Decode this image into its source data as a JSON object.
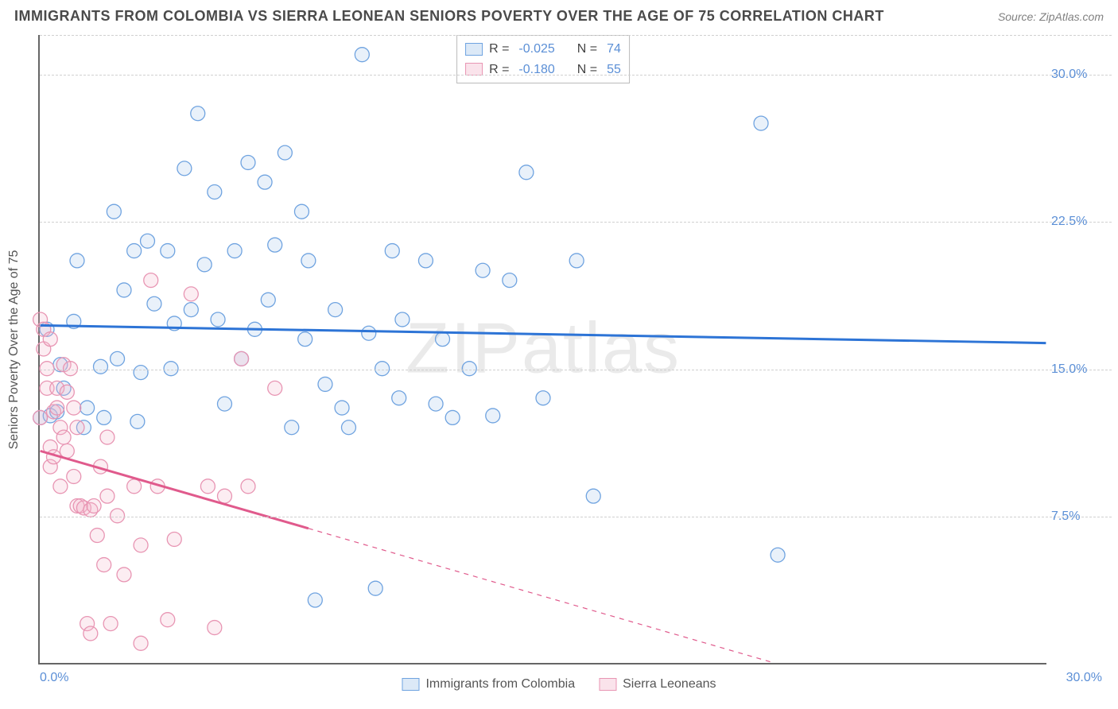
{
  "title": "IMMIGRANTS FROM COLOMBIA VS SIERRA LEONEAN SENIORS POVERTY OVER THE AGE OF 75 CORRELATION CHART",
  "source": "Source: ZipAtlas.com",
  "watermark": "ZIPatlas",
  "chart": {
    "type": "scatter",
    "x_domain": [
      0,
      30
    ],
    "y_domain": [
      0,
      32
    ],
    "y_ticks": [
      7.5,
      15.0,
      22.5,
      30.0
    ],
    "y_tick_labels": [
      "7.5%",
      "15.0%",
      "22.5%",
      "30.0%"
    ],
    "x_ticks": [
      0,
      30
    ],
    "x_tick_labels": [
      "0.0%",
      "30.0%"
    ],
    "y_axis_title": "Seniors Poverty Over the Age of 75",
    "background_color": "#ffffff",
    "grid_color": "#d0d0d0",
    "axis_color": "#666666",
    "tick_label_color": "#5b8fd6",
    "marker_radius": 9,
    "marker_stroke_width": 1.3,
    "marker_fill_opacity": 0.25,
    "line_width": 3,
    "series": [
      {
        "name": "Immigrants from Colombia",
        "color_stroke": "#6fa3e0",
        "color_fill": "#a8c7ec",
        "line_color": "#2d74d6",
        "R": "-0.025",
        "N": "74",
        "trend": {
          "x1": 0,
          "y1": 17.2,
          "x2": 30,
          "y2": 16.3,
          "dash_from_x": null
        },
        "points": [
          [
            0.0,
            12.5
          ],
          [
            0.2,
            17.0
          ],
          [
            0.3,
            12.6
          ],
          [
            0.5,
            12.8
          ],
          [
            0.6,
            15.2
          ],
          [
            0.7,
            14.0
          ],
          [
            1.0,
            17.4
          ],
          [
            1.1,
            20.5
          ],
          [
            1.3,
            12.0
          ],
          [
            1.4,
            13.0
          ],
          [
            1.8,
            15.1
          ],
          [
            1.9,
            12.5
          ],
          [
            2.2,
            23.0
          ],
          [
            2.3,
            15.5
          ],
          [
            2.5,
            19.0
          ],
          [
            2.8,
            21.0
          ],
          [
            2.9,
            12.3
          ],
          [
            3.0,
            14.8
          ],
          [
            3.2,
            21.5
          ],
          [
            3.4,
            18.3
          ],
          [
            3.8,
            21.0
          ],
          [
            3.9,
            15.0
          ],
          [
            4.0,
            17.3
          ],
          [
            4.3,
            25.2
          ],
          [
            4.5,
            18.0
          ],
          [
            4.7,
            28.0
          ],
          [
            4.9,
            20.3
          ],
          [
            5.2,
            24.0
          ],
          [
            5.3,
            17.5
          ],
          [
            5.5,
            13.2
          ],
          [
            5.8,
            21.0
          ],
          [
            6.0,
            15.5
          ],
          [
            6.2,
            25.5
          ],
          [
            6.4,
            17.0
          ],
          [
            6.7,
            24.5
          ],
          [
            6.8,
            18.5
          ],
          [
            7.0,
            21.3
          ],
          [
            7.3,
            26.0
          ],
          [
            7.5,
            12.0
          ],
          [
            7.8,
            23.0
          ],
          [
            7.9,
            16.5
          ],
          [
            8.0,
            20.5
          ],
          [
            8.2,
            3.2
          ],
          [
            8.5,
            14.2
          ],
          [
            8.8,
            18.0
          ],
          [
            9.0,
            13.0
          ],
          [
            9.2,
            12.0
          ],
          [
            9.6,
            31.0
          ],
          [
            9.8,
            16.8
          ],
          [
            10.0,
            3.8
          ],
          [
            10.2,
            15.0
          ],
          [
            10.5,
            21.0
          ],
          [
            10.7,
            13.5
          ],
          [
            10.8,
            17.5
          ],
          [
            11.5,
            20.5
          ],
          [
            11.8,
            13.2
          ],
          [
            12.0,
            16.5
          ],
          [
            12.3,
            12.5
          ],
          [
            12.8,
            15.0
          ],
          [
            13.2,
            20.0
          ],
          [
            13.5,
            12.6
          ],
          [
            14.0,
            19.5
          ],
          [
            14.5,
            25.0
          ],
          [
            15.0,
            13.5
          ],
          [
            16.0,
            20.5
          ],
          [
            16.5,
            8.5
          ],
          [
            21.5,
            27.5
          ],
          [
            22.0,
            5.5
          ]
        ]
      },
      {
        "name": "Sierra Leoneans",
        "color_stroke": "#e895b3",
        "color_fill": "#f2b8cc",
        "line_color": "#e05a8c",
        "R": "-0.180",
        "N": "55",
        "trend": {
          "x1": 0,
          "y1": 10.8,
          "x2": 30,
          "y2": -4.0,
          "dash_from_x": 8.0
        },
        "points": [
          [
            0.0,
            17.5
          ],
          [
            0.0,
            12.5
          ],
          [
            0.1,
            17.0
          ],
          [
            0.1,
            16.0
          ],
          [
            0.2,
            15.0
          ],
          [
            0.2,
            14.0
          ],
          [
            0.3,
            16.5
          ],
          [
            0.3,
            10.0
          ],
          [
            0.3,
            11.0
          ],
          [
            0.4,
            10.5
          ],
          [
            0.4,
            12.8
          ],
          [
            0.5,
            14.0
          ],
          [
            0.5,
            13.0
          ],
          [
            0.6,
            9.0
          ],
          [
            0.6,
            12.0
          ],
          [
            0.7,
            15.2
          ],
          [
            0.7,
            11.5
          ],
          [
            0.8,
            10.8
          ],
          [
            0.8,
            13.8
          ],
          [
            0.9,
            15.0
          ],
          [
            1.0,
            9.5
          ],
          [
            1.0,
            13.0
          ],
          [
            1.1,
            8.0
          ],
          [
            1.1,
            12.0
          ],
          [
            1.2,
            8.0
          ],
          [
            1.3,
            7.9
          ],
          [
            1.4,
            2.0
          ],
          [
            1.5,
            7.8
          ],
          [
            1.5,
            1.5
          ],
          [
            1.6,
            8.0
          ],
          [
            1.7,
            6.5
          ],
          [
            1.8,
            10.0
          ],
          [
            1.9,
            5.0
          ],
          [
            2.0,
            8.5
          ],
          [
            2.0,
            11.5
          ],
          [
            2.1,
            2.0
          ],
          [
            2.3,
            7.5
          ],
          [
            2.5,
            4.5
          ],
          [
            2.8,
            9.0
          ],
          [
            3.0,
            6.0
          ],
          [
            3.0,
            1.0
          ],
          [
            3.3,
            19.5
          ],
          [
            3.5,
            9.0
          ],
          [
            3.8,
            2.2
          ],
          [
            4.0,
            6.3
          ],
          [
            4.5,
            18.8
          ],
          [
            5.0,
            9.0
          ],
          [
            5.2,
            1.8
          ],
          [
            5.5,
            8.5
          ],
          [
            6.0,
            15.5
          ],
          [
            6.2,
            9.0
          ],
          [
            7.0,
            14.0
          ]
        ]
      }
    ],
    "legend_bottom": [
      {
        "label": "Immigrants from Colombia",
        "stroke": "#6fa3e0",
        "fill": "#a8c7ec"
      },
      {
        "label": "Sierra Leoneans",
        "stroke": "#e895b3",
        "fill": "#f2b8cc"
      }
    ],
    "legend_top": [
      {
        "swatch_stroke": "#6fa3e0",
        "swatch_fill": "#a8c7ec",
        "R_label": "R = ",
        "R": "-0.025",
        "N_label": "N = ",
        "N": "74"
      },
      {
        "swatch_stroke": "#e895b3",
        "swatch_fill": "#f2b8cc",
        "R_label": "R = ",
        "R": "-0.180",
        "N_label": "N = ",
        "N": "55"
      }
    ]
  }
}
